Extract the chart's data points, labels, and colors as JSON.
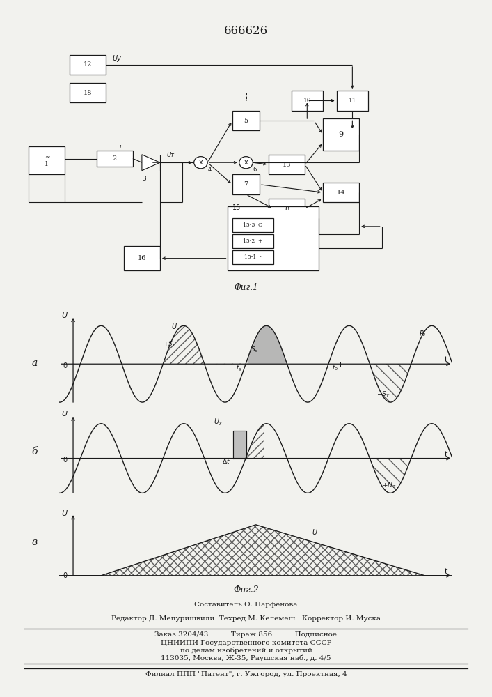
{
  "title": "666626",
  "fig1_caption": "Фиг.1",
  "fig2_caption": "Фиг.2",
  "label_a": "а",
  "label_b": "б",
  "label_v": "в",
  "footer_line1": "Составитель О. Парфенова",
  "footer_line2": "Редактор Д. Мепуришвили  Техред М. Келемеш   Корректор И. Муска",
  "footer_line3": "Заказ 3204/43          Тираж 856          Подписное",
  "footer_line4": "ЦНИИПИ Государственного комитета СССР",
  "footer_line5": "по делам изобретений и открытий",
  "footer_line6": "113035, Москва, Ж-35, Раушская наб., д. 4/5",
  "footer_line7": "Филиал ППП \"Патент\", г. Ужгород, ул. Проектная, 4",
  "bg_color": "#f2f2ee",
  "line_color": "#1a1a1a",
  "text_color": "#1a1a1a"
}
